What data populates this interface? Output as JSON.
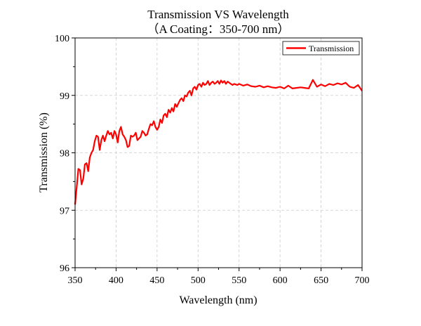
{
  "chart_data": {
    "type": "line",
    "title": "Transmission VS Wavelength",
    "subtitle": "（A Coating：350-700 nm）",
    "xlabel": "Wavelength (nm)",
    "ylabel": "Transmission (%)",
    "xlim": [
      350,
      700
    ],
    "ylim": [
      96,
      100
    ],
    "xticks": [
      350,
      400,
      450,
      500,
      550,
      600,
      650,
      700
    ],
    "yticks": [
      96,
      97,
      98,
      99,
      100
    ],
    "grid": true,
    "legend_position": "top-right",
    "series": [
      {
        "name": "Transmission",
        "color": "#ff0000",
        "x": [
          350,
          352,
          354,
          356,
          358,
          360,
          362,
          364,
          366,
          368,
          370,
          372,
          374,
          376,
          378,
          380,
          382,
          384,
          386,
          388,
          390,
          392,
          394,
          396,
          398,
          400,
          402,
          404,
          406,
          408,
          410,
          412,
          414,
          416,
          418,
          420,
          422,
          424,
          426,
          428,
          430,
          432,
          434,
          436,
          438,
          440,
          442,
          444,
          446,
          448,
          450,
          452,
          454,
          456,
          458,
          460,
          462,
          464,
          466,
          468,
          470,
          472,
          474,
          476,
          478,
          480,
          482,
          484,
          486,
          488,
          490,
          492,
          494,
          496,
          498,
          500,
          502,
          504,
          506,
          508,
          510,
          512,
          514,
          516,
          518,
          520,
          522,
          524,
          526,
          528,
          530,
          532,
          534,
          536,
          538,
          540,
          542,
          544,
          546,
          548,
          550,
          555,
          560,
          565,
          570,
          575,
          580,
          585,
          590,
          595,
          600,
          605,
          610,
          615,
          620,
          625,
          630,
          635,
          640,
          645,
          650,
          655,
          660,
          665,
          670,
          675,
          680,
          685,
          690,
          695,
          700
        ],
        "y": [
          97.1,
          97.4,
          97.72,
          97.7,
          97.45,
          97.55,
          97.8,
          97.82,
          97.68,
          97.92,
          98.0,
          98.05,
          98.2,
          98.3,
          98.28,
          98.05,
          98.22,
          98.3,
          98.2,
          98.3,
          98.38,
          98.32,
          98.35,
          98.25,
          98.38,
          98.32,
          98.18,
          98.38,
          98.45,
          98.32,
          98.28,
          98.22,
          98.1,
          98.12,
          98.3,
          98.28,
          98.3,
          98.35,
          98.22,
          98.25,
          98.28,
          98.38,
          98.35,
          98.3,
          98.32,
          98.42,
          98.5,
          98.48,
          98.55,
          98.45,
          98.4,
          98.45,
          98.58,
          98.52,
          98.65,
          98.68,
          98.62,
          98.75,
          98.7,
          98.78,
          98.72,
          98.85,
          98.8,
          98.86,
          98.92,
          98.95,
          98.9,
          99.0,
          98.98,
          99.05,
          99.08,
          99.0,
          99.12,
          99.15,
          99.1,
          99.18,
          99.2,
          99.15,
          99.22,
          99.18,
          99.2,
          99.25,
          99.18,
          99.22,
          99.24,
          99.2,
          99.22,
          99.25,
          99.2,
          99.26,
          99.22,
          99.25,
          99.2,
          99.24,
          99.22,
          99.2,
          99.18,
          99.2,
          99.19,
          99.18,
          99.2,
          99.17,
          99.19,
          99.16,
          99.15,
          99.17,
          99.14,
          99.16,
          99.14,
          99.13,
          99.15,
          99.12,
          99.17,
          99.12,
          99.13,
          99.14,
          99.13,
          99.12,
          99.27,
          99.15,
          99.19,
          99.16,
          99.2,
          99.18,
          99.21,
          99.19,
          99.22,
          99.15,
          99.13,
          99.18,
          99.08
        ]
      }
    ]
  }
}
